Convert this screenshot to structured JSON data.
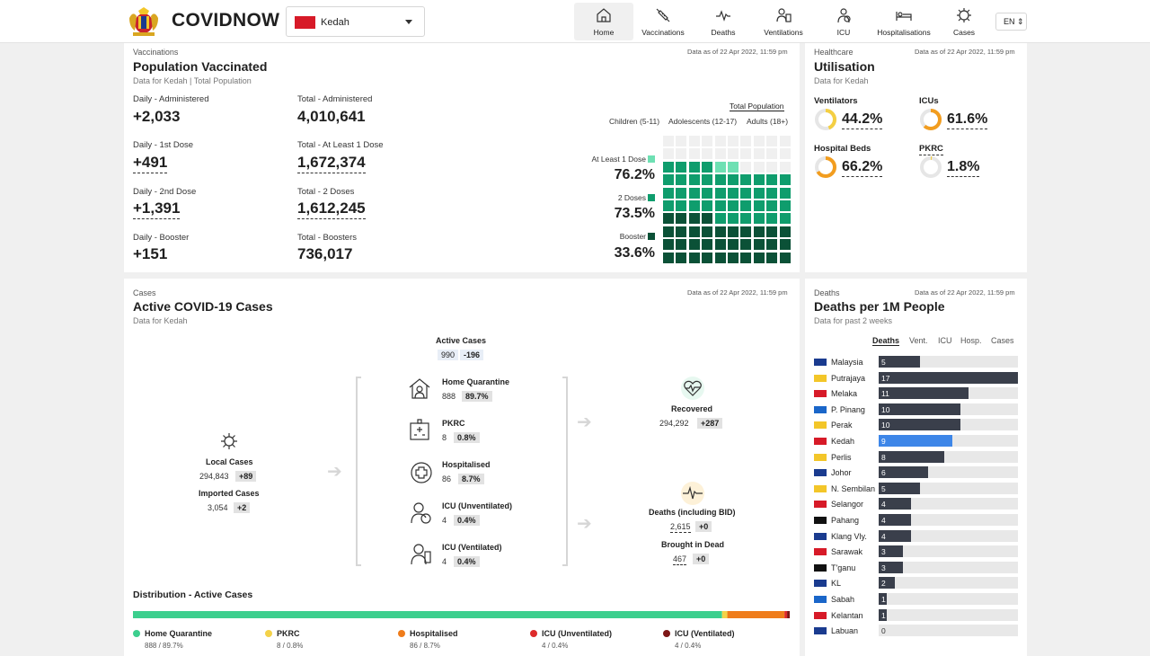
{
  "header": {
    "brand": "COVIDNOW",
    "state": "Kedah",
    "lang": "EN",
    "nav": [
      {
        "label": "Home",
        "icon": "home-icon",
        "active": true
      },
      {
        "label": "Vaccinations",
        "icon": "syringe-icon"
      },
      {
        "label": "Deaths",
        "icon": "pulse-icon"
      },
      {
        "label": "Ventilations",
        "icon": "ventilator-icon"
      },
      {
        "label": "ICU",
        "icon": "icu-icon"
      },
      {
        "label": "Hospitalisations",
        "icon": "hospital-bed-icon"
      },
      {
        "label": "Cases",
        "icon": "virus-icon"
      }
    ]
  },
  "vaccinations": {
    "eyebrow": "Vaccinations",
    "title": "Population Vaccinated",
    "subtitle": "Data for Kedah | Total Population",
    "stamp": "Data as of 22 Apr 2022, 11:59 pm",
    "stats": [
      {
        "label": "Daily - Administered",
        "value": "+2,033"
      },
      {
        "label": "Total - Administered",
        "value": "4,010,641"
      },
      {
        "label": "Daily - 1st Dose",
        "value": "+491"
      },
      {
        "label": "Total - At Least 1 Dose",
        "value": "1,672,374"
      },
      {
        "label": "Daily - 2nd Dose",
        "value": "+1,391"
      },
      {
        "label": "Total - 2 Doses",
        "value": "1,612,245"
      },
      {
        "label": "Daily - Booster",
        "value": "+151"
      },
      {
        "label": "Total - Boosters",
        "value": "736,017"
      }
    ],
    "population_tabs": [
      "Total Population",
      "Children (5-11)",
      "Adolescents (12-17)",
      "Adults (18+)"
    ],
    "active_population_tab": "Total Population",
    "waffle": [
      {
        "label": "At Least 1 Dose",
        "pct": "76.2%",
        "value": 76.2,
        "color": "#6ee0b3"
      },
      {
        "label": "2 Doses",
        "pct": "73.5%",
        "value": 73.5,
        "color": "#0f9d6d"
      },
      {
        "label": "Booster",
        "pct": "33.6%",
        "value": 33.6,
        "color": "#0b5137"
      }
    ]
  },
  "healthcare": {
    "eyebrow": "Healthcare",
    "title": "Utilisation",
    "subtitle": "Data for Kedah",
    "stamp": "Data as of 22 Apr 2022, 11:59 pm",
    "items": [
      {
        "label": "Ventilators",
        "pct": "44.2%",
        "value": 44.2,
        "color": "#f4cf43"
      },
      {
        "label": "ICUs",
        "pct": "61.6%",
        "value": 61.6,
        "color": "#f29d1f"
      },
      {
        "label": "Hospital Beds",
        "pct": "66.2%",
        "value": 66.2,
        "color": "#f29d1f"
      },
      {
        "label": "PKRC",
        "pct": "1.8%",
        "value": 1.8,
        "color": "#f4cf43"
      }
    ]
  },
  "cases": {
    "eyebrow": "Cases",
    "title": "Active COVID-19 Cases",
    "subtitle": "Data for Kedah",
    "stamp": "Data as of 22 Apr 2022, 11:59 pm",
    "active": {
      "label": "Active Cases",
      "value": "990",
      "delta": "-196"
    },
    "local": {
      "label": "Local Cases",
      "value": "294,843",
      "delta": "+89"
    },
    "imported": {
      "label": "Imported Cases",
      "value": "3,054",
      "delta": "+2"
    },
    "categories": [
      {
        "label": "Home Quarantine",
        "value": "888",
        "pct": "89.7%"
      },
      {
        "label": "PKRC",
        "value": "8",
        "pct": "0.8%"
      },
      {
        "label": "Hospitalised",
        "value": "86",
        "pct": "8.7%"
      },
      {
        "label": "ICU (Unventilated)",
        "value": "4",
        "pct": "0.4%"
      },
      {
        "label": "ICU (Ventilated)",
        "value": "4",
        "pct": "0.4%"
      }
    ],
    "recovered": {
      "label": "Recovered",
      "value": "294,292",
      "delta": "+287"
    },
    "deaths": {
      "label": "Deaths (including BID)",
      "value": "2,615",
      "delta": "+0"
    },
    "bid": {
      "label": "Brought in Dead",
      "value": "467",
      "delta": "+0"
    },
    "distribution": {
      "title": "Distribution - Active Cases",
      "items": [
        {
          "label": "Home Quarantine",
          "detail": "888 / 89.7%",
          "value": 89.7,
          "color": "#3ccf8e"
        },
        {
          "label": "PKRC",
          "detail": "8 / 0.8%",
          "value": 0.8,
          "color": "#f4d249"
        },
        {
          "label": "Hospitalised",
          "detail": "86 / 8.7%",
          "value": 8.7,
          "color": "#ef7c1a"
        },
        {
          "label": "ICU (Unventilated)",
          "detail": "4 / 0.4%",
          "value": 0.4,
          "color": "#dd2a2a"
        },
        {
          "label": "ICU (Ventilated)",
          "detail": "4 / 0.4%",
          "value": 0.4,
          "color": "#7d1616"
        }
      ]
    }
  },
  "deaths": {
    "eyebrow": "Deaths",
    "title": "Deaths per 1M People",
    "subtitle": "Data for past 2 weeks",
    "stamp": "Data as of 22 Apr 2022, 11:59 pm",
    "tabs": [
      "Deaths",
      "Vent.",
      "ICU",
      "Hosp.",
      "Cases"
    ],
    "active_tab": "Deaths",
    "highlight": "Kedah",
    "highlight_color": "#3d86e8",
    "max": 17,
    "rows": [
      {
        "name": "Malaysia",
        "value": 5
      },
      {
        "name": "Putrajaya",
        "value": 17
      },
      {
        "name": "Melaka",
        "value": 11
      },
      {
        "name": "P. Pinang",
        "value": 10
      },
      {
        "name": "Perak",
        "value": 10
      },
      {
        "name": "Kedah",
        "value": 9
      },
      {
        "name": "Perlis",
        "value": 8
      },
      {
        "name": "Johor",
        "value": 6
      },
      {
        "name": "N. Sembilan",
        "value": 5
      },
      {
        "name": "Selangor",
        "value": 4
      },
      {
        "name": "Pahang",
        "value": 4
      },
      {
        "name": "Klang Vly.",
        "value": 4
      },
      {
        "name": "Sarawak",
        "value": 3
      },
      {
        "name": "T'ganu",
        "value": 3
      },
      {
        "name": "KL",
        "value": 2
      },
      {
        "name": "Sabah",
        "value": 1
      },
      {
        "name": "Kelantan",
        "value": 1
      },
      {
        "name": "Labuan",
        "value": 0
      }
    ]
  }
}
